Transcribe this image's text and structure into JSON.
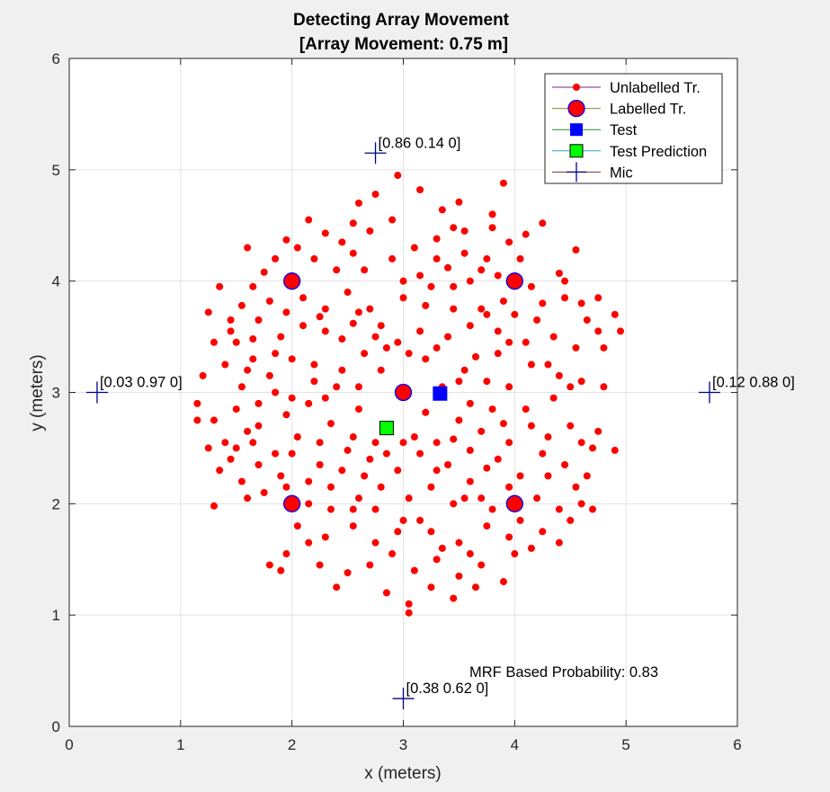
{
  "chart_data": {
    "type": "scatter",
    "title": "Detecting Array Movement",
    "subtitle": "[Array Movement: 0.75 m]",
    "xlabel": "x (meters)",
    "ylabel": "y (meters)",
    "xlim": [
      0,
      6
    ],
    "ylim": [
      0,
      6
    ],
    "xticks": [
      "0",
      "1",
      "2",
      "3",
      "4",
      "5",
      "6"
    ],
    "yticks": [
      "0",
      "1",
      "2",
      "3",
      "4",
      "5",
      "6"
    ],
    "grid": true,
    "legend_position": "top-right",
    "annotation": "MRF Based Probability: 0.83",
    "legend": [
      {
        "key": "unlabelled",
        "label": "Unlabelled Tr."
      },
      {
        "key": "labelled",
        "label": "Labelled Tr."
      },
      {
        "key": "test",
        "label": "Test"
      },
      {
        "key": "prediction",
        "label": "Test Prediction"
      },
      {
        "key": "mic",
        "label": "Mic"
      }
    ],
    "colors": {
      "unlabelled": "#ff0000",
      "labelled_fill": "#ff0000",
      "labelled_edge": "#0000ff",
      "test": "#0000ff",
      "prediction": "#00ff00",
      "mic": "#00008b",
      "grid": "#e3e3e3",
      "axes_bg": "#ffffff",
      "figure_bg": "#f0f0f0"
    },
    "series": [
      {
        "key": "unlabelled",
        "marker": "dot",
        "points": [
          [
            2.15,
            4.55
          ],
          [
            2.3,
            4.43
          ],
          [
            2.55,
            4.52
          ],
          [
            2.75,
            4.78
          ],
          [
            2.95,
            4.95
          ],
          [
            3.15,
            4.82
          ],
          [
            3.35,
            4.64
          ],
          [
            3.5,
            4.71
          ],
          [
            3.9,
            4.88
          ],
          [
            4.25,
            4.52
          ],
          [
            1.95,
            4.37
          ],
          [
            1.6,
            4.3
          ],
          [
            2.55,
            4.25
          ],
          [
            3.45,
            4.48
          ],
          [
            3.8,
            4.48
          ],
          [
            4.1,
            4.42
          ],
          [
            1.75,
            4.08
          ],
          [
            2.05,
            4.3
          ],
          [
            2.4,
            4.1
          ],
          [
            2.65,
            4.1
          ],
          [
            2.9,
            4.2
          ],
          [
            3.1,
            4.3
          ],
          [
            3.3,
            4.2
          ],
          [
            3.55,
            4.25
          ],
          [
            3.7,
            4.1
          ],
          [
            3.95,
            4.35
          ],
          [
            4.4,
            4.07
          ],
          [
            4.55,
            4.28
          ],
          [
            1.35,
            3.95
          ],
          [
            1.55,
            3.78
          ],
          [
            1.8,
            3.82
          ],
          [
            2.1,
            3.85
          ],
          [
            2.3,
            3.75
          ],
          [
            2.5,
            3.9
          ],
          [
            2.7,
            3.75
          ],
          [
            3.0,
            3.85
          ],
          [
            3.2,
            3.78
          ],
          [
            3.45,
            3.95
          ],
          [
            3.7,
            3.75
          ],
          [
            3.9,
            3.82
          ],
          [
            4.2,
            3.65
          ],
          [
            4.45,
            4.0
          ],
          [
            4.6,
            3.8
          ],
          [
            4.75,
            3.85
          ],
          [
            4.9,
            3.7
          ],
          [
            1.25,
            3.72
          ],
          [
            1.45,
            3.55
          ],
          [
            1.65,
            3.48
          ],
          [
            1.9,
            3.5
          ],
          [
            2.1,
            3.6
          ],
          [
            2.3,
            3.55
          ],
          [
            2.55,
            3.62
          ],
          [
            2.75,
            3.5
          ],
          [
            2.95,
            3.45
          ],
          [
            3.15,
            3.55
          ],
          [
            3.4,
            3.5
          ],
          [
            3.6,
            3.6
          ],
          [
            3.85,
            3.35
          ],
          [
            4.1,
            3.45
          ],
          [
            4.3,
            3.25
          ],
          [
            4.55,
            3.4
          ],
          [
            4.75,
            3.55
          ],
          [
            1.2,
            3.15
          ],
          [
            1.4,
            3.25
          ],
          [
            1.6,
            3.2
          ],
          [
            1.8,
            3.15
          ],
          [
            2.0,
            3.3
          ],
          [
            2.2,
            3.1
          ],
          [
            2.45,
            3.2
          ],
          [
            2.6,
            3.05
          ],
          [
            2.8,
            3.2
          ],
          [
            3.2,
            3.3
          ],
          [
            3.55,
            3.2
          ],
          [
            3.75,
            3.1
          ],
          [
            3.95,
            3.05
          ],
          [
            4.15,
            3.25
          ],
          [
            4.4,
            3.15
          ],
          [
            4.6,
            3.1
          ],
          [
            4.8,
            3.05
          ],
          [
            1.15,
            2.9
          ],
          [
            1.3,
            2.75
          ],
          [
            1.5,
            2.85
          ],
          [
            1.7,
            2.7
          ],
          [
            1.95,
            2.8
          ],
          [
            2.15,
            2.9
          ],
          [
            2.35,
            2.72
          ],
          [
            2.6,
            2.85
          ],
          [
            2.85,
            2.7
          ],
          [
            3.1,
            2.6
          ],
          [
            3.3,
            2.55
          ],
          [
            3.5,
            2.75
          ],
          [
            3.7,
            2.65
          ],
          [
            3.9,
            2.72
          ],
          [
            4.1,
            2.85
          ],
          [
            4.3,
            2.6
          ],
          [
            4.5,
            2.7
          ],
          [
            4.7,
            2.5
          ],
          [
            4.9,
            2.48
          ],
          [
            1.25,
            2.5
          ],
          [
            1.45,
            2.4
          ],
          [
            1.65,
            2.55
          ],
          [
            1.85,
            2.45
          ],
          [
            2.05,
            2.6
          ],
          [
            2.25,
            2.35
          ],
          [
            2.5,
            2.48
          ],
          [
            2.7,
            2.4
          ],
          [
            2.95,
            2.3
          ],
          [
            3.15,
            2.45
          ],
          [
            3.4,
            2.35
          ],
          [
            3.6,
            2.2
          ],
          [
            3.85,
            2.4
          ],
          [
            4.05,
            2.25
          ],
          [
            4.25,
            2.45
          ],
          [
            4.45,
            2.35
          ],
          [
            4.65,
            2.25
          ],
          [
            1.55,
            2.2
          ],
          [
            1.75,
            2.1
          ],
          [
            1.95,
            2.15
          ],
          [
            2.15,
            2.0
          ],
          [
            2.35,
            2.15
          ],
          [
            2.6,
            2.05
          ],
          [
            2.8,
            2.15
          ],
          [
            3.05,
            2.05
          ],
          [
            3.25,
            2.15
          ],
          [
            3.45,
            2.0
          ],
          [
            3.7,
            2.05
          ],
          [
            3.95,
            2.15
          ],
          [
            4.2,
            2.05
          ],
          [
            4.4,
            1.95
          ],
          [
            4.6,
            2.0
          ],
          [
            2.05,
            1.8
          ],
          [
            2.3,
            1.7
          ],
          [
            2.55,
            1.8
          ],
          [
            2.75,
            1.65
          ],
          [
            3.0,
            1.85
          ],
          [
            3.25,
            1.75
          ],
          [
            3.5,
            1.65
          ],
          [
            3.75,
            1.8
          ],
          [
            3.95,
            1.7
          ],
          [
            4.15,
            1.6
          ],
          [
            4.4,
            1.65
          ],
          [
            2.25,
            1.45
          ],
          [
            2.5,
            1.38
          ],
          [
            2.7,
            1.45
          ],
          [
            2.9,
            1.55
          ],
          [
            3.1,
            1.4
          ],
          [
            3.3,
            1.5
          ],
          [
            3.5,
            1.35
          ],
          [
            3.7,
            1.45
          ],
          [
            3.9,
            1.3
          ],
          [
            2.4,
            1.25
          ],
          [
            2.85,
            1.2
          ],
          [
            3.05,
            1.1
          ],
          [
            3.25,
            1.25
          ],
          [
            3.45,
            1.15
          ],
          [
            3.65,
            1.25
          ],
          [
            3.05,
            1.02
          ],
          [
            1.9,
            1.4
          ],
          [
            1.8,
            1.45
          ],
          [
            1.3,
            1.98
          ],
          [
            1.6,
            2.05
          ],
          [
            2.0,
            2.45
          ],
          [
            2.0,
            2.95
          ],
          [
            4.95,
            3.55
          ],
          [
            4.8,
            3.4
          ],
          [
            4.65,
            3.65
          ],
          [
            1.35,
            2.3
          ],
          [
            1.15,
            2.75
          ],
          [
            3.8,
            4.6
          ],
          [
            3.55,
            4.45
          ],
          [
            2.9,
            4.55
          ],
          [
            2.6,
            4.7
          ],
          [
            3.3,
            4.38
          ],
          [
            3.0,
            4.0
          ],
          [
            3.15,
            4.05
          ],
          [
            3.4,
            4.12
          ],
          [
            2.45,
            3.48
          ],
          [
            3.65,
            3.32
          ],
          [
            3.6,
            2.9
          ],
          [
            3.8,
            2.85
          ],
          [
            2.3,
            2.95
          ],
          [
            2.55,
            2.6
          ],
          [
            2.75,
            2.55
          ],
          [
            3.2,
            2.82
          ],
          [
            3.45,
            2.58
          ],
          [
            3.6,
            2.48
          ],
          [
            3.75,
            2.32
          ],
          [
            2.15,
            1.65
          ],
          [
            1.95,
            1.55
          ],
          [
            4.25,
            1.75
          ],
          [
            4.5,
            1.85
          ],
          [
            4.7,
            1.95
          ],
          [
            4.3,
            2.25
          ],
          [
            4.55,
            2.15
          ],
          [
            4.6,
            2.55
          ],
          [
            4.75,
            2.65
          ],
          [
            1.4,
            2.55
          ],
          [
            1.6,
            2.65
          ],
          [
            1.7,
            2.9
          ],
          [
            1.85,
            3.0
          ],
          [
            1.55,
            3.05
          ],
          [
            1.3,
            3.45
          ],
          [
            1.45,
            3.65
          ],
          [
            1.7,
            3.65
          ],
          [
            1.95,
            3.72
          ],
          [
            2.25,
            3.68
          ],
          [
            2.6,
            3.72
          ],
          [
            2.8,
            3.6
          ],
          [
            2.85,
            3.4
          ],
          [
            3.05,
            3.35
          ],
          [
            3.3,
            3.4
          ],
          [
            3.5,
            3.1
          ],
          [
            3.35,
            3.05
          ],
          [
            2.65,
            3.35
          ],
          [
            2.4,
            3.05
          ],
          [
            2.2,
            3.25
          ],
          [
            1.85,
            3.35
          ],
          [
            1.65,
            3.3
          ],
          [
            1.5,
            3.45
          ],
          [
            3.85,
            3.55
          ],
          [
            4.0,
            3.7
          ],
          [
            4.25,
            3.8
          ],
          [
            4.35,
            3.5
          ],
          [
            4.45,
            3.85
          ],
          [
            4.5,
            3.05
          ],
          [
            4.35,
            2.95
          ],
          [
            4.15,
            2.7
          ],
          [
            3.95,
            2.55
          ],
          [
            2.25,
            2.55
          ],
          [
            2.45,
            2.3
          ],
          [
            2.65,
            2.25
          ],
          [
            2.85,
            2.45
          ],
          [
            3.0,
            2.55
          ],
          [
            3.3,
            2.3
          ],
          [
            3.55,
            2.05
          ],
          [
            3.8,
            1.95
          ],
          [
            4.05,
            1.85
          ],
          [
            4.0,
            1.55
          ],
          [
            3.6,
            1.55
          ],
          [
            3.35,
            1.6
          ],
          [
            3.15,
            1.85
          ],
          [
            2.95,
            1.75
          ],
          [
            2.75,
            1.95
          ],
          [
            2.55,
            1.95
          ],
          [
            2.35,
            1.95
          ],
          [
            2.15,
            2.2
          ],
          [
            1.9,
            2.25
          ],
          [
            1.7,
            2.35
          ],
          [
            1.5,
            2.5
          ],
          [
            3.25,
            3.95
          ],
          [
            3.45,
            3.75
          ],
          [
            3.6,
            4.0
          ],
          [
            3.75,
            4.2
          ],
          [
            3.85,
            4.05
          ],
          [
            4.05,
            4.2
          ],
          [
            2.45,
            4.35
          ],
          [
            2.7,
            4.45
          ],
          [
            2.2,
            4.2
          ],
          [
            1.85,
            4.2
          ],
          [
            1.65,
            3.95
          ],
          [
            3.95,
            3.45
          ],
          [
            3.75,
            3.7
          ],
          [
            4.15,
            3.95
          ]
        ]
      },
      {
        "key": "labelled",
        "marker": "circle",
        "points": [
          [
            2,
            4
          ],
          [
            4,
            4
          ],
          [
            3,
            3
          ],
          [
            2,
            2
          ],
          [
            4,
            2
          ]
        ]
      },
      {
        "key": "test",
        "marker": "square",
        "points": [
          [
            3.33,
            2.99
          ]
        ]
      },
      {
        "key": "prediction",
        "marker": "square",
        "points": [
          [
            2.85,
            2.68
          ]
        ]
      },
      {
        "key": "mic",
        "marker": "plus",
        "points": [
          [
            2.75,
            5.15
          ],
          [
            0.25,
            3.0
          ],
          [
            5.75,
            3.0
          ],
          [
            3.0,
            0.25
          ]
        ],
        "labels": [
          "[0.86 0.14 0]",
          "[0.03 0.97 0]",
          "[0.12 0.88 0]",
          "[0.38 0.62 0]"
        ]
      }
    ]
  }
}
